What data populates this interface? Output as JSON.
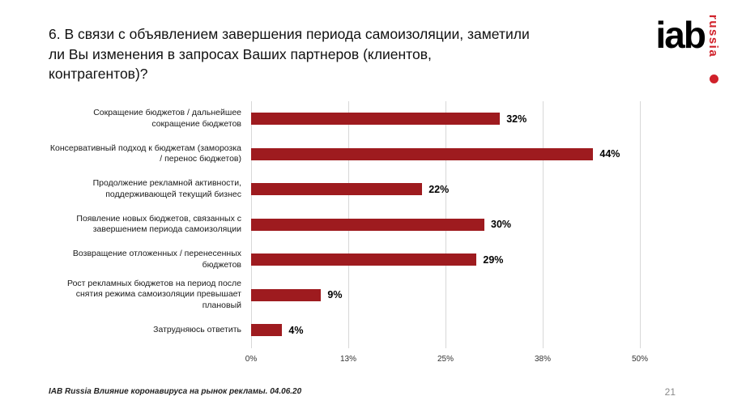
{
  "header": {
    "title": "6. В связи с объявлением завершения периода самоизоляции, заметили ли Вы изменения в запросах Ваших партнеров (клиентов, контрагентов)?",
    "logo": {
      "iab": "iab",
      "russia": "russia",
      "accent_color": "#D0212A"
    }
  },
  "chart_data": {
    "type": "bar",
    "orientation": "horizontal",
    "title": "6. В связи с объявлением завершения периода самоизоляции, заметили ли Вы изменения в запросах Ваших партнеров (клиентов, контрагентов)?",
    "categories": [
      "Сокращение бюджетов / дальнейшее сокращение бюджетов",
      "Консервативный подход к бюджетам (заморозка / перенос бюджетов)",
      "Продолжение рекламной активности, поддерживающей текущий бизнес",
      "Появление новых бюджетов, связанных с завершением периода самоизоляции",
      "Возвращение отложенных / перенесенных бюджетов",
      "Рост рекламных бюджетов на период после снятия режима самоизоляции превышает плановый",
      "Затрудняюсь ответить"
    ],
    "values": [
      32,
      44,
      22,
      30,
      29,
      9,
      4
    ],
    "value_labels": [
      "32%",
      "44%",
      "22%",
      "30%",
      "29%",
      "9%",
      "4%"
    ],
    "x_ticks": [
      "0%",
      "13%",
      "25%",
      "38%",
      "50%"
    ],
    "x_tick_positions": [
      0,
      12.5,
      25,
      37.5,
      50
    ],
    "xlim": [
      0,
      50
    ],
    "xlabel": "",
    "ylabel": "",
    "grid": "vertical",
    "legend": "none",
    "bar_color": "#9E1B1F",
    "gridline_color": "#D8D8D8"
  },
  "footer": {
    "source": "IAB Russia Влияние коронавируса на рынок рекламы. 04.06.20",
    "page": "21"
  }
}
